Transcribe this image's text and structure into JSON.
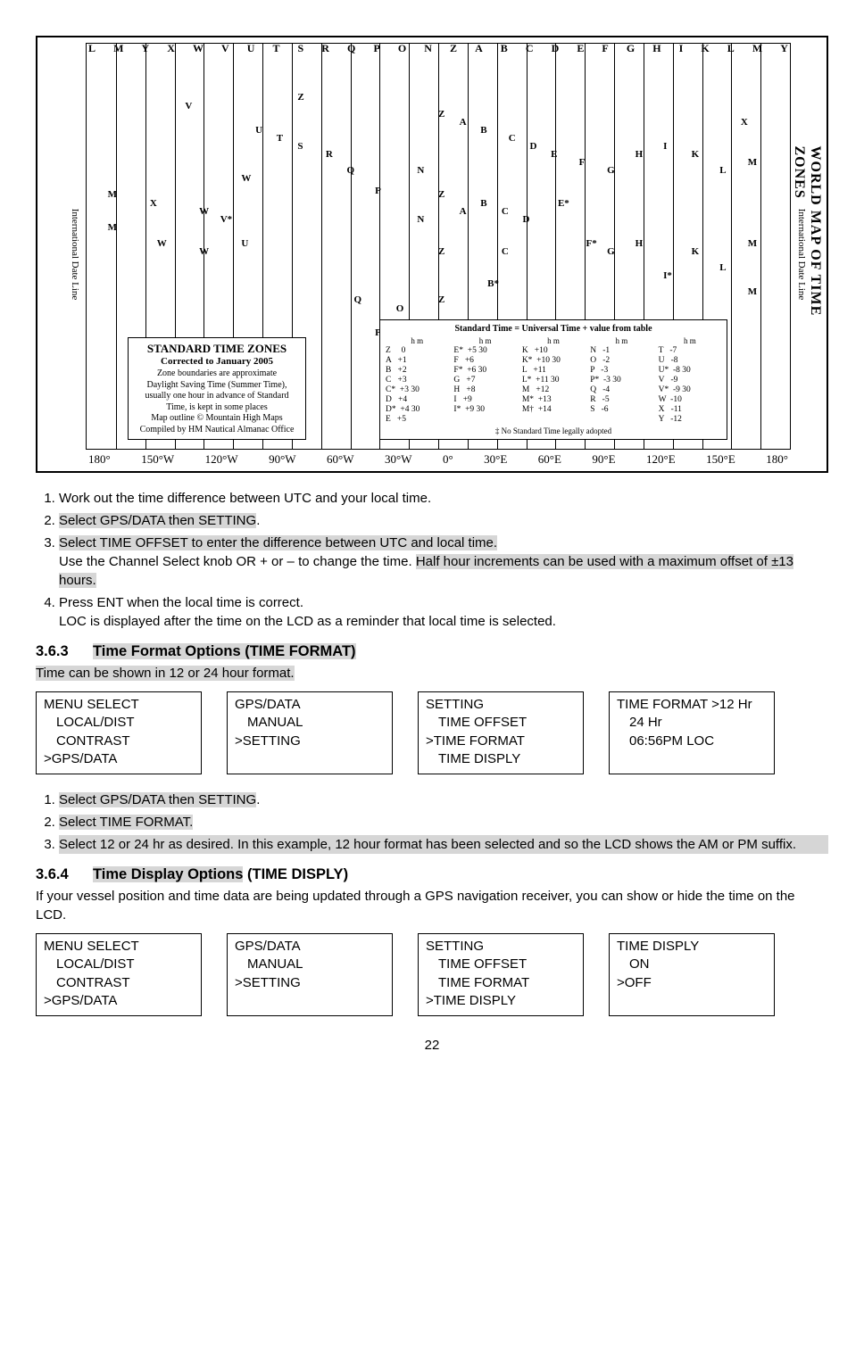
{
  "map": {
    "title_right": "WORLD MAP OF TIME ZONES",
    "title_left": "WORLD MAP OF TIME ZONES",
    "dateline_label": "International Date Line",
    "top_letters": [
      "L",
      "M",
      "Y",
      "X",
      "W",
      "V",
      "U",
      "T",
      "S",
      "R",
      "Q",
      "P",
      "O",
      "N",
      "Z",
      "A",
      "B",
      "C",
      "D",
      "E",
      "F",
      "G",
      "H",
      "I",
      "K",
      "L",
      "M",
      "Y"
    ],
    "bottom_longs": [
      "180°",
      "150°W",
      "120°W",
      "90°W",
      "60°W",
      "30°W",
      "0°",
      "30°E",
      "60°E",
      "90°E",
      "120°E",
      "150°E",
      "180°"
    ],
    "std_box": {
      "line1": "STANDARD TIME ZONES",
      "line2": "Corrected to January 2005",
      "line3": "Zone boundaries are approximate",
      "line4": "Daylight Saving Time (Summer Time), usually one hour in advance of Standard Time, is kept in some places",
      "line5": "Map outline © Mountain High Maps",
      "line6": "Compiled by HM Nautical Almanac Office"
    },
    "table_box": {
      "header": "Standard Time = Universal Time + value from table",
      "hm": "h  m",
      "footer": "‡  No Standard Time legally adopted",
      "cols": [
        "Z     0\nA   +1\nB   +2\nC   +3\nC*  +3 30\nD   +4\nD*  +4 30\nE   +5",
        "E*  +5 30\nF   +6\nF*  +6 30\nG   +7\nH   +8\nI   +9\nI*  +9 30",
        "K   +10\nK*  +10 30\nL   +11\nL*  +11 30\nM   +12\nM*  +13\nM†  +14",
        "N   -1\nO   -2\nP   -3\nP*  -3 30\nQ   -4\nR   -5\nS   -6",
        "T   -7\nU   -8\nU*  -8 30\nV   -9\nV*  -9 30\nW  -10\nX   -11\nY   -12"
      ]
    },
    "scatter": [
      {
        "t": "V",
        "x": 14,
        "y": 14
      },
      {
        "t": "W",
        "x": 22,
        "y": 32
      },
      {
        "t": "M",
        "x": 3,
        "y": 36
      },
      {
        "t": "X",
        "x": 9,
        "y": 38
      },
      {
        "t": "W",
        "x": 16,
        "y": 40
      },
      {
        "t": "M",
        "x": 3,
        "y": 44
      },
      {
        "t": "W",
        "x": 10,
        "y": 48
      },
      {
        "t": "W",
        "x": 16,
        "y": 50
      },
      {
        "t": "U",
        "x": 22,
        "y": 48
      },
      {
        "t": "V*",
        "x": 19,
        "y": 42
      },
      {
        "t": "U",
        "x": 24,
        "y": 20
      },
      {
        "t": "T",
        "x": 27,
        "y": 22
      },
      {
        "t": "S",
        "x": 30,
        "y": 24
      },
      {
        "t": "R",
        "x": 34,
        "y": 26
      },
      {
        "t": "Q",
        "x": 37,
        "y": 30
      },
      {
        "t": "P",
        "x": 41,
        "y": 35
      },
      {
        "t": "N",
        "x": 47,
        "y": 30
      },
      {
        "t": "N",
        "x": 47,
        "y": 42
      },
      {
        "t": "Z",
        "x": 50,
        "y": 16
      },
      {
        "t": "Z",
        "x": 50,
        "y": 36
      },
      {
        "t": "Z",
        "x": 50,
        "y": 50
      },
      {
        "t": "Z",
        "x": 50,
        "y": 62
      },
      {
        "t": "A",
        "x": 53,
        "y": 18
      },
      {
        "t": "A",
        "x": 53,
        "y": 40
      },
      {
        "t": "B",
        "x": 56,
        "y": 20
      },
      {
        "t": "B",
        "x": 56,
        "y": 38
      },
      {
        "t": "B*",
        "x": 57,
        "y": 58
      },
      {
        "t": "C",
        "x": 60,
        "y": 22
      },
      {
        "t": "C",
        "x": 59,
        "y": 40
      },
      {
        "t": "C",
        "x": 59,
        "y": 50
      },
      {
        "t": "D",
        "x": 63,
        "y": 24
      },
      {
        "t": "D",
        "x": 62,
        "y": 42
      },
      {
        "t": "E",
        "x": 66,
        "y": 26
      },
      {
        "t": "E*",
        "x": 67,
        "y": 38
      },
      {
        "t": "F",
        "x": 70,
        "y": 28
      },
      {
        "t": "F*",
        "x": 71,
        "y": 48
      },
      {
        "t": "G",
        "x": 74,
        "y": 30
      },
      {
        "t": "G",
        "x": 74,
        "y": 50
      },
      {
        "t": "H",
        "x": 78,
        "y": 26
      },
      {
        "t": "H",
        "x": 78,
        "y": 48
      },
      {
        "t": "I",
        "x": 82,
        "y": 24
      },
      {
        "t": "I*",
        "x": 82,
        "y": 56
      },
      {
        "t": "K",
        "x": 86,
        "y": 26
      },
      {
        "t": "K",
        "x": 86,
        "y": 50
      },
      {
        "t": "L",
        "x": 90,
        "y": 30
      },
      {
        "t": "L",
        "x": 90,
        "y": 54
      },
      {
        "t": "M",
        "x": 94,
        "y": 28
      },
      {
        "t": "M",
        "x": 94,
        "y": 48
      },
      {
        "t": "M",
        "x": 94,
        "y": 60
      },
      {
        "t": "X",
        "x": 93,
        "y": 18
      },
      {
        "t": "P",
        "x": 41,
        "y": 70
      },
      {
        "t": "O",
        "x": 44,
        "y": 64
      },
      {
        "t": "Q",
        "x": 38,
        "y": 62
      },
      {
        "t": "Z",
        "x": 30,
        "y": 12
      }
    ]
  },
  "steps1": {
    "i1": "Work out the time difference between UTC and your local time.",
    "i2_hl": "Select GPS/DATA then SETTING",
    "i2_end": ".",
    "i3_hl": "Select TIME OFFSET to enter the difference between UTC and local time.",
    "i3b_a": "Use the Channel Select knob OR + or – to change the time. ",
    "i3b_hl": "Half hour increments can be used with a maximum offset of ±13 hours.",
    "i4": "Press ENT when the local time is correct.",
    "i4b": "LOC is displayed after the time on the LCD as a reminder that local time is selected."
  },
  "sec363": {
    "num": "3.6.3",
    "title_hl": "Time Format Options (TIME FORMAT)",
    "intro_hl": "Time can be shown in 12 or 24 hour format."
  },
  "menus1": {
    "b1": {
      "l1": "MENU SELECT",
      "l2": "LOCAL/DIST",
      "l3": "CONTRAST",
      "l4": ">GPS/DATA"
    },
    "b2": {
      "l1": "GPS/DATA",
      "l2": "MANUAL",
      "l3": ">SETTING"
    },
    "b3": {
      "l1": "SETTING",
      "l2": "TIME OFFSET",
      "l3": ">TIME FORMAT",
      "l4": "TIME DISPLY"
    },
    "b4": {
      "l1": "TIME FORMAT",
      "l2": ">12 Hr",
      "l3": "24 Hr",
      "l4": "06:56PM LOC"
    }
  },
  "steps2": {
    "i1_hl": "Select GPS/DATA then SETTING",
    "i1_end": ".",
    "i2_hl": "Select TIME FORMAT.",
    "i3_hl": "Select 12 or 24 hr as desired. In this example, 12 hour format has been selected and so the LCD shows the AM or PM suffix."
  },
  "sec364": {
    "num": "3.6.4",
    "title_hl": "Time Display Options",
    "title_rest": " (TIME DISPLY)",
    "intro": "If your vessel position and time data are being updated through a GPS navigation receiver, you can show or hide the time on the LCD."
  },
  "menus2": {
    "b1": {
      "l1": "MENU SELECT",
      "l2": "LOCAL/DIST",
      "l3": "CONTRAST",
      "l4": ">GPS/DATA"
    },
    "b2": {
      "l1": "GPS/DATA",
      "l2": "MANUAL",
      "l3": ">SETTING"
    },
    "b3": {
      "l1": "SETTING",
      "l2": "TIME OFFSET",
      "l3": "TIME FORMAT",
      "l4": ">TIME DISPLY"
    },
    "b4": {
      "l1": "TIME DISPLY",
      "l2": "ON",
      "l3": ">OFF"
    }
  },
  "page_number": "22"
}
